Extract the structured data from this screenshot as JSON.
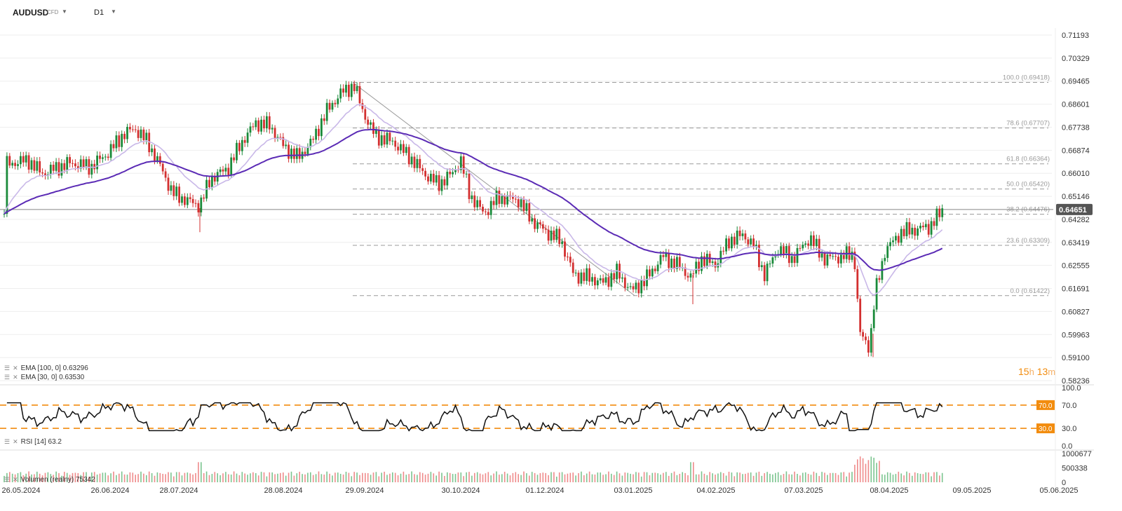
{
  "header": {
    "symbol": "AUDUSD",
    "symbol_type": "CFD",
    "timeframe": "D1"
  },
  "price_axis": {
    "labels": [
      "0.71193",
      "0.70329",
      "0.69465",
      "0.68601",
      "0.67738",
      "0.66874",
      "0.66010",
      "0.65146",
      "0.64282",
      "0.63419",
      "0.62555",
      "0.61691",
      "0.60827",
      "0.59963",
      "0.59100",
      "0.58236"
    ],
    "current_price": "0.64651"
  },
  "date_axis": {
    "labels": [
      "26.05.2024",
      "26.06.2024",
      "28.07.2024",
      "28.08.2024",
      "29.09.2024",
      "30.10.2024",
      "01.12.2024",
      "03.01.2025",
      "04.02.2025",
      "07.03.2025",
      "08.04.2025",
      "09.05.2025",
      "05.06.2025"
    ]
  },
  "fibonacci": [
    {
      "label": "100.0 (0.69418)",
      "value": 0.69418
    },
    {
      "label": "78.6 (0.67707)",
      "value": 0.67707
    },
    {
      "label": "61.8 (0.66364)",
      "value": 0.66364
    },
    {
      "label": "50.0 (0.65420)",
      "value": 0.6542
    },
    {
      "label": "38.2 (0.64476)",
      "value": 0.64476
    },
    {
      "label": "23.6 (0.63309)",
      "value": 0.63309
    },
    {
      "label": "0.0 (0.61422)",
      "value": 0.61422
    }
  ],
  "indicators": {
    "ema100_label": "EMA [100, 0] 0.63296",
    "ema30_label": "EMA [30, 0] 0.63530",
    "rsi_label": "RSI [14] 63.2",
    "volume_label": "Volumen (realny) 75342",
    "rsi_axis": [
      "100.0",
      "70.0",
      "30.0",
      "0.0"
    ],
    "rsi_upper": "70.0",
    "rsi_lower": "30.0",
    "volume_axis": [
      "1000677",
      "500338",
      "0"
    ]
  },
  "timer": {
    "hours": "15",
    "h_unit": "h",
    "minutes": "13",
    "m_unit": "m"
  },
  "colors": {
    "up": "#1a8a3a",
    "down": "#d32f2f",
    "ema100": "#5b2bb5",
    "ema30": "#c9b8e8",
    "rsi_band": "#f28c0e",
    "price_tag": "#555555"
  },
  "chart_data": {
    "type": "candlestick",
    "title": "AUDUSD D1",
    "ylim": [
      0.58236,
      0.71193
    ],
    "series_close": [
      {
        "date": "2024-05-27",
        "close": 0.663
      },
      {
        "date": "2024-06-26",
        "close": 0.665
      },
      {
        "date": "2024-07-08",
        "close": 0.677
      },
      {
        "date": "2024-07-28",
        "close": 0.655
      },
      {
        "date": "2024-08-05",
        "close": 0.65
      },
      {
        "date": "2024-08-28",
        "close": 0.679
      },
      {
        "date": "2024-09-29",
        "close": 0.693
      },
      {
        "date": "2024-10-30",
        "close": 0.656
      },
      {
        "date": "2024-12-01",
        "close": 0.651
      },
      {
        "date": "2025-01-03",
        "close": 0.615
      },
      {
        "date": "2025-02-04",
        "close": 0.631
      },
      {
        "date": "2025-03-07",
        "close": 0.63
      },
      {
        "date": "2025-04-08",
        "close": 0.6
      },
      {
        "date": "2025-04-28",
        "close": 0.6465
      }
    ]
  }
}
